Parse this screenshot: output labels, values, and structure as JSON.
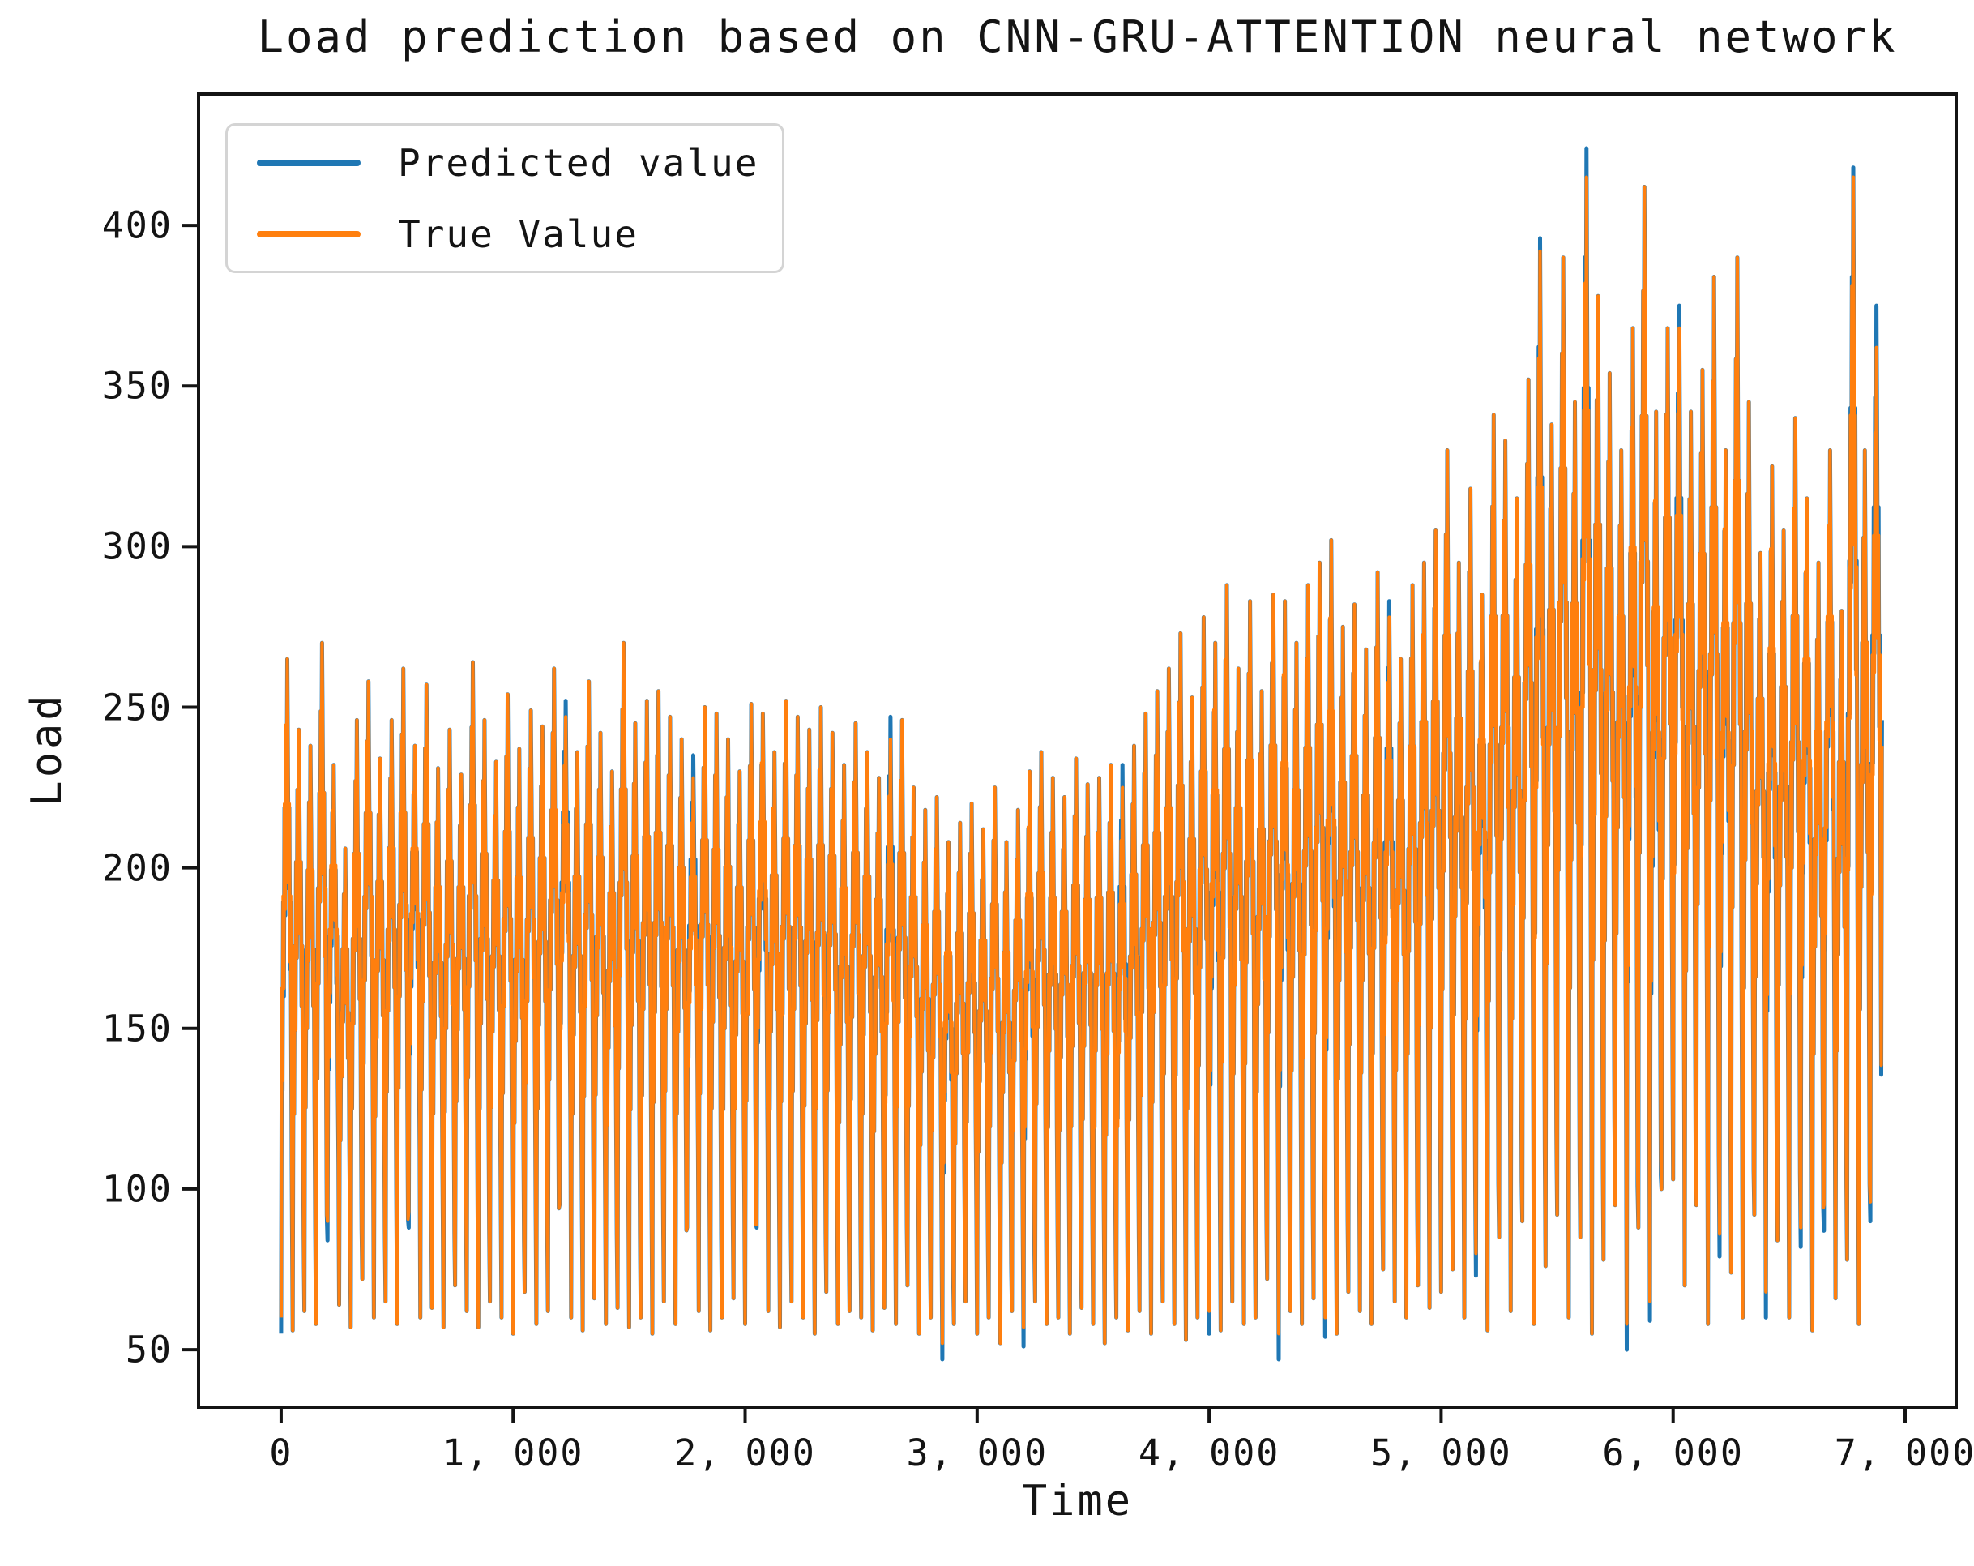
{
  "title": "Load prediction based on CNN-GRU-ATTENTION neural network",
  "axes": {
    "x_label": "Time",
    "y_label": "Load"
  },
  "legend": {
    "items": [
      {
        "label": "Predicted value",
        "color": "#1f77b4"
      },
      {
        "label": "True Value",
        "color": "#ff7f0e"
      }
    ]
  },
  "chart_data": {
    "type": "line",
    "title": "Load prediction based on CNN-GRU-ATTENTION neural network",
    "xlabel": "Time",
    "ylabel": "Load",
    "grid": false,
    "legend_position": "upper left",
    "xlim": [
      -356,
      7220
    ],
    "ylim": [
      32.1,
      440.9
    ],
    "x_ticks": [
      0,
      1000,
      2000,
      3000,
      4000,
      5000,
      6000,
      7000
    ],
    "x_tick_labels": [
      "0",
      "1, 000",
      "2, 000",
      "3, 000",
      "4, 000",
      "5, 000",
      "6, 000",
      "7, 000"
    ],
    "y_ticks": [
      50,
      100,
      150,
      200,
      250,
      300,
      350,
      400
    ],
    "y_tick_labels": [
      "50",
      "100",
      "150",
      "200",
      "250",
      "300",
      "350",
      "400"
    ],
    "x_start": 0,
    "x_end": 6900,
    "cycle_width": 50,
    "n_cycles": 138,
    "note": "Two nearly-coincident series of ~6900 samples with daily cycles; stored as per-cycle peak/trough envelope plus intra-cycle shape fractions.",
    "cycle_shape": [
      0,
      0.5,
      0.36,
      0.64,
      0.5,
      0.78,
      0.62,
      0.9,
      0.74,
      1,
      0.84,
      0.66,
      0.78,
      0.54,
      0.64,
      0.36,
      0.16
    ],
    "series": [
      {
        "name": "Predicted value",
        "color": "#1f77b4",
        "basis": "True Value envelope plus deltas where prediction visibly deviates",
        "deltas": {
          "0": {
            "trough": -5
          },
          "4": {
            "trough": -6
          },
          "11": {
            "trough": -5
          },
          "24": {
            "peak": 5
          },
          "35": {
            "peak": 7
          },
          "41": {
            "trough": -7
          },
          "52": {
            "peak": 7
          },
          "57": {
            "trough": -5
          },
          "64": {
            "trough": -6
          },
          "72": {
            "peak": 7
          },
          "80": {
            "trough": -7
          },
          "86": {
            "trough": -8
          },
          "90": {
            "trough": -6
          },
          "95": {
            "peak": 5
          },
          "103": {
            "trough": -7
          },
          "108": {
            "peak": 4
          },
          "112": {
            "peak": 9
          },
          "116": {
            "trough": -8
          },
          "118": {
            "trough": -6
          },
          "120": {
            "peak": 7
          },
          "124": {
            "trough": -7
          },
          "128": {
            "trough": -8
          },
          "131": {
            "trough": -6
          },
          "133": {
            "trough": -8
          },
          "135": {
            "peak": 3
          },
          "137": {
            "peak": 13,
            "trough": -6
          }
        },
        "end_value": 246
      },
      {
        "name": "True Value",
        "color": "#ff7f0e",
        "peaks": [
          265,
          243,
          238,
          270,
          232,
          206,
          246,
          258,
          234,
          246,
          262,
          238,
          257,
          231,
          243,
          229,
          264,
          246,
          233,
          254,
          237,
          249,
          244,
          262,
          247,
          236,
          258,
          242,
          230,
          270,
          245,
          252,
          255,
          247,
          240,
          228,
          250,
          248,
          240,
          230,
          251,
          248,
          236,
          252,
          247,
          243,
          250,
          242,
          232,
          245,
          236,
          228,
          240,
          246,
          225,
          218,
          222,
          208,
          214,
          220,
          212,
          225,
          208,
          218,
          230,
          236,
          228,
          222,
          234,
          226,
          228,
          232,
          225,
          238,
          248,
          255,
          262,
          273,
          253,
          278,
          270,
          288,
          262,
          283,
          255,
          285,
          283,
          270,
          288,
          295,
          302,
          275,
          282,
          268,
          292,
          278,
          265,
          288,
          295,
          305,
          330,
          295,
          318,
          285,
          341,
          333,
          315,
          352,
          392,
          338,
          390,
          345,
          415,
          378,
          354,
          330,
          368,
          412,
          342,
          368,
          368,
          342,
          355,
          384,
          330,
          390,
          345,
          298,
          325,
          305,
          340,
          315,
          295,
          330,
          280,
          415,
          330,
          362
        ],
        "troughs": [
          60,
          56,
          62,
          58,
          90,
          64,
          57,
          72,
          60,
          65,
          58,
          93,
          60,
          63,
          57,
          70,
          62,
          57,
          65,
          60,
          55,
          68,
          58,
          62,
          95,
          60,
          56,
          66,
          58,
          63,
          57,
          60,
          55,
          65,
          58,
          88,
          62,
          56,
          60,
          66,
          58,
          95,
          62,
          57,
          65,
          60,
          55,
          68,
          58,
          62,
          60,
          56,
          63,
          58,
          70,
          55,
          60,
          52,
          58,
          65,
          55,
          60,
          52,
          62,
          57,
          65,
          58,
          60,
          55,
          63,
          58,
          52,
          60,
          56,
          62,
          55,
          65,
          58,
          53,
          60,
          62,
          56,
          65,
          58,
          60,
          72,
          55,
          62,
          58,
          66,
          60,
          55,
          68,
          62,
          58,
          75,
          65,
          60,
          70,
          63,
          68,
          75,
          60,
          80,
          56,
          85,
          62,
          90,
          58,
          76,
          92,
          60,
          85,
          55,
          78,
          95,
          58,
          88,
          65,
          100,
          103,
          70,
          95,
          58,
          86,
          74,
          60,
          92,
          68,
          84,
          60,
          88,
          56,
          95,
          66,
          78,
          58,
          96
        ],
        "end_value": 238
      }
    ]
  }
}
